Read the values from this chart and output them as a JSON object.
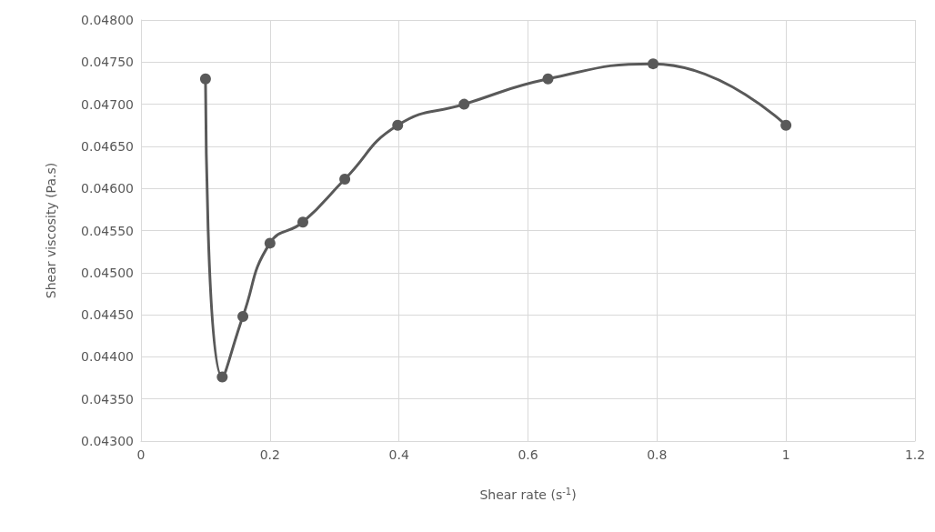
{
  "chart_data": {
    "type": "line",
    "xlabel": "Shear rate (s$^{-1}$)",
    "ylabel": "Shear viscosity (Pa.s)",
    "x": [
      0.1,
      0.126,
      0.158,
      0.2,
      0.251,
      0.316,
      0.398,
      0.501,
      0.631,
      0.794,
      1
    ],
    "series": [
      {
        "color": "#595959",
        "values": [
          0.0473,
          0.04376,
          0.04448,
          0.04535,
          0.0456,
          0.04611,
          0.04675,
          0.047,
          0.0473,
          0.04748,
          0.04675
        ]
      }
    ],
    "xlim": [
      0,
      1.2
    ],
    "xticks": [
      0,
      0.2,
      0.4,
      0.6,
      0.8,
      1,
      1.2
    ],
    "ylim": [
      0.043,
      0.048
    ],
    "yticks": [
      {
        "value": 0.043,
        "label": "0.04300"
      },
      {
        "value": 0.0435,
        "label": "0.04350"
      },
      {
        "value": 0.044,
        "label": "0.04400"
      },
      {
        "value": 0.0445,
        "label": "0.04450"
      },
      {
        "value": 0.045,
        "label": "0.04500"
      },
      {
        "value": 0.0455,
        "label": "0.04550"
      },
      {
        "value": 0.046,
        "label": "0.04600"
      },
      {
        "value": 0.0465,
        "label": "0.04650"
      },
      {
        "value": 0.047,
        "label": "0.04700"
      },
      {
        "value": 0.0475,
        "label": "0.04750"
      },
      {
        "value": 0.048,
        "label": "0.04800"
      }
    ],
    "grid": true,
    "marker": "circle",
    "line_style": "solid"
  }
}
